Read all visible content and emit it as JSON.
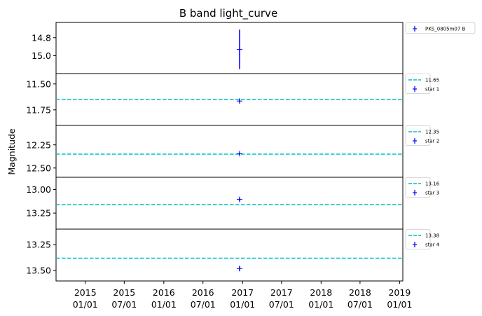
{
  "chart_data": {
    "type": "scatter",
    "title": "B band light_curve",
    "ylabel": "Magnitude",
    "xlabel": "",
    "x_ticks": [
      {
        "date": "2015-01-01",
        "label": [
          "2015",
          "01/01"
        ]
      },
      {
        "date": "2015-07-01",
        "label": [
          "2015",
          "07/01"
        ]
      },
      {
        "date": "2016-01-01",
        "label": [
          "2016",
          "01/01"
        ]
      },
      {
        "date": "2016-07-01",
        "label": [
          "2016",
          "07/01"
        ]
      },
      {
        "date": "2017-01-01",
        "label": [
          "2017",
          "01/01"
        ]
      },
      {
        "date": "2017-07-01",
        "label": [
          "2017",
          "07/01"
        ]
      },
      {
        "date": "2018-01-01",
        "label": [
          "2018",
          "01/01"
        ]
      },
      {
        "date": "2018-07-01",
        "label": [
          "2018",
          "07/01"
        ]
      },
      {
        "date": "2019-01-01",
        "label": [
          "2019",
          "01/01"
        ]
      }
    ],
    "xlim": [
      "2014-08-18",
      "2019-01-16"
    ],
    "y_inverted": true,
    "grid": false,
    "legend_placement": "outside right",
    "panels": [
      {
        "ylim": [
          14.63,
          15.2
        ],
        "yticks": [
          14.8,
          15.0
        ],
        "ytick_labels": [
          "14.8",
          "15.0"
        ],
        "reference": null,
        "series": {
          "name": "PKS_0805m07 B",
          "color": "#0000ff",
          "points": [
            {
              "x": "2016-12-18",
              "y": 14.93,
              "yerr": 0.22
            }
          ]
        }
      },
      {
        "ylim": [
          11.4,
          11.9
        ],
        "yticks": [
          11.5,
          11.75
        ],
        "ytick_labels": [
          "11.50",
          "11.75"
        ],
        "reference": {
          "value": 11.65,
          "label": "11.65",
          "color": "#00bfbf"
        },
        "series": {
          "name": "star 1",
          "color": "#0000ff",
          "points": [
            {
              "x": "2016-12-18",
              "y": 11.665,
              "yerr": 0.015
            }
          ]
        }
      },
      {
        "ylim": [
          12.04,
          12.6
        ],
        "yticks": [
          12.25,
          12.5
        ],
        "ytick_labels": [
          "12.25",
          "12.50"
        ],
        "reference": {
          "value": 12.35,
          "label": "12.35",
          "color": "#00bfbf"
        },
        "series": {
          "name": "star 2",
          "color": "#0000ff",
          "points": [
            {
              "x": "2016-12-18",
              "y": 12.345,
              "yerr": 0.012
            }
          ]
        }
      },
      {
        "ylim": [
          12.87,
          13.42
        ],
        "yticks": [
          13.0,
          13.25
        ],
        "ytick_labels": [
          "13.00",
          "13.25"
        ],
        "reference": {
          "value": 13.16,
          "label": "13.16",
          "color": "#00bfbf"
        },
        "series": {
          "name": "star 3",
          "color": "#0000ff",
          "points": [
            {
              "x": "2016-12-18",
              "y": 13.105,
              "yerr": 0.018
            }
          ]
        }
      },
      {
        "ylim": [
          13.1,
          13.6
        ],
        "yticks": [
          13.25,
          13.5
        ],
        "ytick_labels": [
          "13.25",
          "13.50"
        ],
        "reference": {
          "value": 13.38,
          "label": "13.38",
          "color": "#00bfbf"
        },
        "series": {
          "name": "star 4",
          "color": "#0000ff",
          "points": [
            {
              "x": "2016-12-18",
              "y": 13.48,
              "yerr": 0.022
            }
          ]
        }
      }
    ]
  }
}
